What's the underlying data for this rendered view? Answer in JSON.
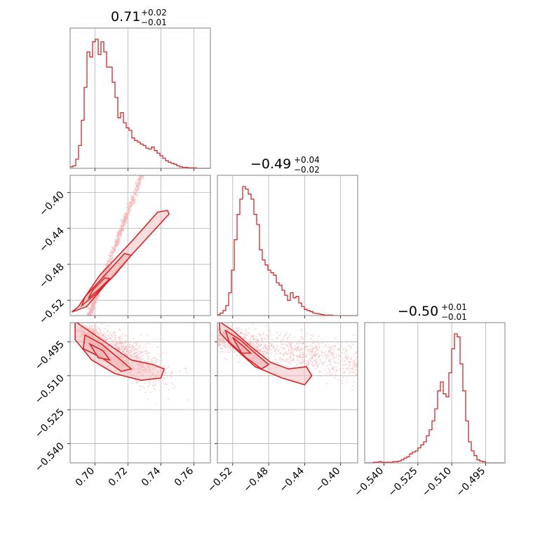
{
  "chart_data": {
    "type": "corner",
    "color": "#d62728",
    "fill_color": "#f4b6b8",
    "grid": true,
    "parameters": [
      {
        "range": [
          0.685,
          0.77
        ],
        "ticks": [
          "0.70",
          "0.72",
          "0.74",
          "0.76"
        ],
        "tick_values": [
          0.7,
          0.72,
          0.74,
          0.76
        ],
        "title": {
          "median": "0.71",
          "plus": "+0.02",
          "minus": "−0.01"
        }
      },
      {
        "range": [
          -0.537,
          -0.381
        ],
        "ticks": [
          "−0.52",
          "−0.48",
          "−0.44",
          "−0.40"
        ],
        "tick_values": [
          -0.52,
          -0.48,
          -0.44,
          -0.4
        ],
        "title": {
          "median": "−0.49",
          "plus": "+0.04",
          "minus": "−0.02"
        }
      },
      {
        "range": [
          -0.5485,
          -0.4865
        ],
        "ticks": [
          "−0.540",
          "−0.525",
          "−0.510",
          "−0.495"
        ],
        "tick_values": [
          -0.54,
          -0.525,
          -0.51,
          -0.495
        ],
        "title": {
          "median": "−0.50",
          "plus": "+0.01",
          "minus": "−0.01"
        }
      }
    ],
    "hist1": {
      "start": 0.685,
      "width": 0.0017,
      "counts": [
        3,
        5,
        18,
        45,
        95,
        160,
        230,
        220,
        250,
        255,
        225,
        250,
        230,
        200,
        200,
        170,
        140,
        100,
        110,
        90,
        80,
        75,
        60,
        55,
        52,
        48,
        45,
        40,
        38,
        42,
        35,
        30,
        25,
        20,
        15,
        12,
        10,
        8,
        5,
        3,
        2,
        2,
        1,
        1,
        1,
        0,
        0,
        0,
        0,
        0
      ]
    },
    "hist2": {
      "start": -0.537,
      "width": 0.00312,
      "counts": [
        2,
        5,
        10,
        20,
        45,
        90,
        150,
        200,
        230,
        255,
        250,
        240,
        230,
        200,
        180,
        130,
        110,
        100,
        90,
        85,
        80,
        65,
        60,
        50,
        40,
        30,
        45,
        35,
        38,
        25,
        18,
        12,
        10,
        8,
        5,
        4,
        3,
        2,
        1,
        1,
        1,
        0,
        0,
        0,
        0,
        0,
        0,
        0,
        0,
        0
      ]
    },
    "hist3": {
      "start": -0.5485,
      "width": 0.00124,
      "counts": [
        0,
        0,
        0,
        1,
        1,
        2,
        1,
        1,
        1,
        1,
        2,
        2,
        3,
        5,
        8,
        10,
        15,
        18,
        20,
        25,
        30,
        35,
        45,
        55,
        70,
        90,
        120,
        135,
        115,
        110,
        150,
        190,
        215,
        210,
        165,
        120,
        70,
        35,
        20,
        12,
        5,
        3,
        2,
        0,
        0,
        0,
        0,
        0,
        0,
        0
      ]
    },
    "scatter": {
      "x1_vs_x2": {
        "slope": 4.9,
        "note_points": [
          [
            0.688,
            -0.535
          ],
          [
            0.7,
            -0.505
          ],
          [
            0.72,
            -0.462
          ],
          [
            0.74,
            -0.42
          ],
          [
            0.745,
            -0.412
          ]
        ]
      },
      "x1_vs_x3": {
        "points": [
          [
            0.69,
            -0.49
          ],
          [
            0.7,
            -0.498
          ],
          [
            0.715,
            -0.505
          ],
          [
            0.73,
            -0.51
          ],
          [
            0.74,
            -0.508
          ]
        ]
      },
      "x2_vs_x3": {
        "points": [
          [
            -0.53,
            -0.49
          ],
          [
            -0.5,
            -0.5
          ],
          [
            -0.47,
            -0.507
          ],
          [
            -0.44,
            -0.51
          ],
          [
            -0.42,
            -0.512
          ]
        ]
      }
    }
  }
}
